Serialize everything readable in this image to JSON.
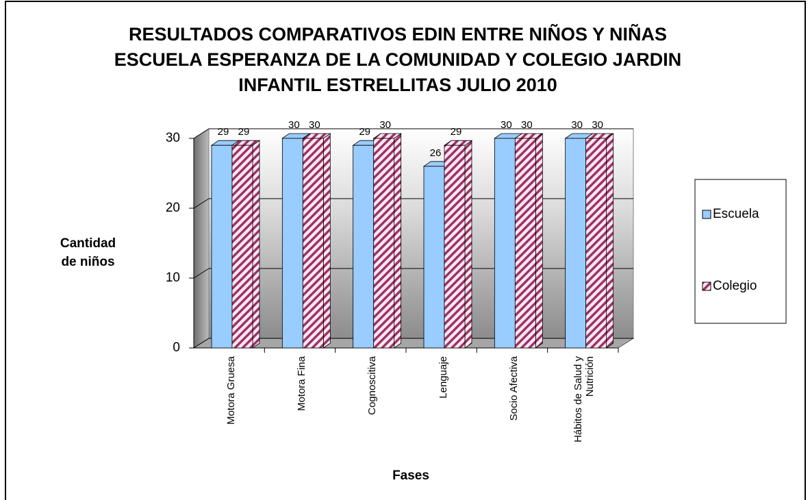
{
  "chart_data": {
    "type": "bar3d",
    "title": "RESULTADOS COMPARATIVOS EDIN ENTRE NIÑOS Y NIÑAS ESCUELA ESPERANZA DE LA COMUNIDAD Y COLEGIO JARDIN INFANTIL ESTRELLITAS JULIO 2010",
    "y_label": "Cantidad de niños",
    "x_label": "Fases",
    "categories": [
      "Motora Gruesa",
      "Motora Fina",
      "Cognoscitiva",
      "Lenguaje",
      "Socio Afectiva",
      "Hábitos de Salud y Nutrición"
    ],
    "series": [
      {
        "name": "Escuela",
        "color": "#99ccff",
        "values": [
          29,
          30,
          29,
          26,
          30,
          30
        ]
      },
      {
        "name": "Colegio",
        "color": "#993366",
        "values": [
          29,
          30,
          30,
          29,
          30,
          30
        ]
      }
    ],
    "ylim": [
      0,
      30
    ],
    "yticks": [
      0,
      10,
      20,
      30
    ],
    "grid": true,
    "legend": "right"
  }
}
